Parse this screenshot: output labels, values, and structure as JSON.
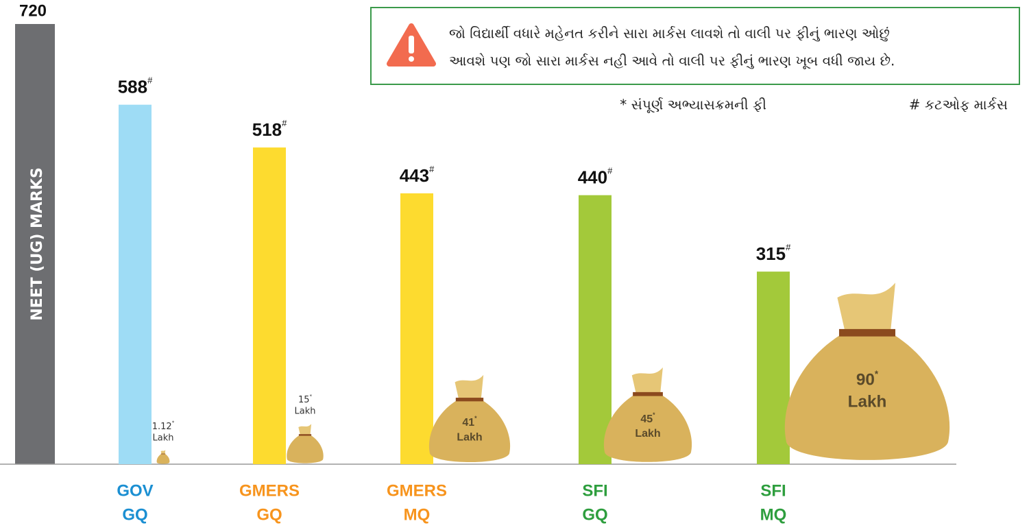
{
  "chart_data": {
    "type": "bar",
    "ylabel": "NEET (UG)  MARKS",
    "ylim": [
      0,
      720
    ],
    "yticks": [
      720
    ],
    "categories": [
      [
        "GOV",
        "GQ"
      ],
      [
        "GMERS",
        "GQ"
      ],
      [
        "GMERS",
        "MQ"
      ],
      [
        "SFI",
        "GQ"
      ],
      [
        "SFI",
        "MQ"
      ]
    ],
    "category_colors": [
      "#1b8fd2",
      "#f7941d",
      "#f7941d",
      "#2e9e3e",
      "#2e9e3e"
    ],
    "colors": [
      "#9edcf5",
      "#fddb2f",
      "#fddb2f",
      "#a3c93a",
      "#a3c93a"
    ],
    "values": [
      588,
      518,
      443,
      440,
      315
    ],
    "value_marker": "#",
    "fees": {
      "values": [
        1.12,
        15,
        41,
        45,
        90
      ],
      "unit": "Lakh",
      "marker": "*"
    },
    "notice": [
      "જો વિદ્યાર્થી વધારે મહેનત કરીને સારા માર્કસ લાવશે તો વાલી પર ફીનું ભારણ ઓછું",
      "આવશે પણ જો સારા માર્કસ નહી આવે તો વાલી પર ફીનું ભારણ ખૂબ વધી જાય છે."
    ],
    "legend": [
      "* સંપૂર્ણ અભ્યાસક્રમની ફી",
      "# કટઓફ માર્કસ"
    ]
  }
}
